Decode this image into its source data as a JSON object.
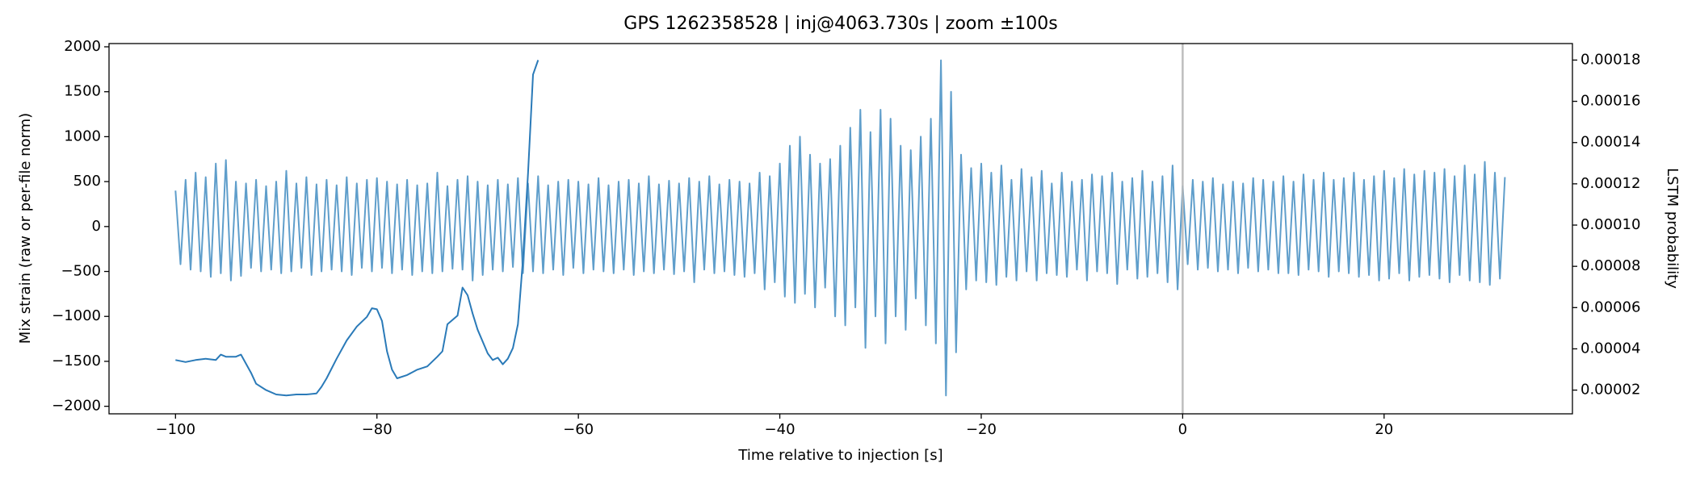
{
  "chart_data": {
    "type": "line",
    "title": "GPS 1262358528 | inj@4063.730s | zoom ±100s",
    "xlabel": "Time relative to injection [s]",
    "ylabel": "Mix strain (raw or per-file norm)",
    "y2label": "LSTM probability",
    "xlim": [
      -106.6,
      38.7
    ],
    "ylim": [
      -2084,
      2036
    ],
    "y2lim": [
      8.5e-06,
      0.000188
    ],
    "xticks": [
      {
        "value": -100,
        "label": "−100"
      },
      {
        "value": -80,
        "label": "−80"
      },
      {
        "value": -60,
        "label": "−60"
      },
      {
        "value": -40,
        "label": "−40"
      },
      {
        "value": -20,
        "label": "−20"
      },
      0,
      20
    ],
    "yticks": [
      {
        "value": -2000,
        "label": "−2000"
      },
      {
        "value": -1500,
        "label": "−1500"
      },
      {
        "value": -1000,
        "label": "−1000"
      },
      {
        "value": -500,
        "label": "−500"
      },
      0,
      500,
      1000,
      1500,
      2000
    ],
    "y2ticks": [
      2e-05,
      4e-05,
      6e-05,
      8e-05,
      {
        "value": 0.0001,
        "label": "0.00010"
      },
      0.00012,
      0.00014,
      0.00016,
      0.00018
    ],
    "vline": {
      "x": 0,
      "color": "#b8b8b8"
    },
    "series": [
      {
        "color": "#5f9ecb",
        "x": [
          -100,
          -99.5,
          -99,
          -98.5,
          -98,
          -97.5,
          -97,
          -96.5,
          -96,
          -95.5,
          -95,
          -94.5,
          -94,
          -93.5,
          -93,
          -92.5,
          -92,
          -91.5,
          -91,
          -90.5,
          -90,
          -89.5,
          -89,
          -88.5,
          -88,
          -87.5,
          -87,
          -86.5,
          -86,
          -85.5,
          -85,
          -84.5,
          -84,
          -83.5,
          -83,
          -82.5,
          -82,
          -81.5,
          -81,
          -80.5,
          -80,
          -79.5,
          -79,
          -78.5,
          -78,
          -77.5,
          -77,
          -76.5,
          -76,
          -75.5,
          -75,
          -74.5,
          -74,
          -73.5,
          -73,
          -72.5,
          -72,
          -71.5,
          -71,
          -70.5,
          -70,
          -69.5,
          -69,
          -68.5,
          -68,
          -67.5,
          -67,
          -66.5,
          -66,
          -65.5,
          -65,
          -64.5,
          -64,
          -63.5,
          -63,
          -62.5,
          -62,
          -61.5,
          -61,
          -60.5,
          -60,
          -59.5,
          -59,
          -58.5,
          -58,
          -57.5,
          -57,
          -56.5,
          -56,
          -55.5,
          -55,
          -54.5,
          -54,
          -53.5,
          -53,
          -52.5,
          -52,
          -51.5,
          -51,
          -50.5,
          -50,
          -49.5,
          -49,
          -48.5,
          -48,
          -47.5,
          -47,
          -46.5,
          -46,
          -45.5,
          -45,
          -44.5,
          -44,
          -43.5,
          -43,
          -42.5,
          -42,
          -41.5,
          -41,
          -40.5,
          -40,
          -39.5,
          -39,
          -38.5,
          -38,
          -37.5,
          -37,
          -36.5,
          -36,
          -35.5,
          -35,
          -34.5,
          -34,
          -33.5,
          -33,
          -32.5,
          -32,
          -31.5,
          -31,
          -30.5,
          -30,
          -29.5,
          -29,
          -28.5,
          -28,
          -27.5,
          -27,
          -26.5,
          -26,
          -25.5,
          -25,
          -24.5,
          -24,
          -23.5,
          -23,
          -22.5,
          -22,
          -21.5,
          -21,
          -20.5,
          -20,
          -19.5,
          -19,
          -18.5,
          -18,
          -17.5,
          -17,
          -16.5,
          -16,
          -15.5,
          -15,
          -14.5,
          -14,
          -13.5,
          -13,
          -12.5,
          -12,
          -11.5,
          -11,
          -10.5,
          -10,
          -9.5,
          -9,
          -8.5,
          -8,
          -7.5,
          -7,
          -6.5,
          -6,
          -5.5,
          -5,
          -4.5,
          -4,
          -3.5,
          -3,
          -2.5,
          -2,
          -1.5,
          -1,
          -0.5,
          0,
          0.5,
          1,
          1.5,
          2,
          2.5,
          3,
          3.5,
          4,
          4.5,
          5,
          5.5,
          6,
          6.5,
          7,
          7.5,
          8,
          8.5,
          9,
          9.5,
          10,
          10.5,
          11,
          11.5,
          12,
          12.5,
          13,
          13.5,
          14,
          14.5,
          15,
          15.5,
          16,
          16.5,
          17,
          17.5,
          18,
          18.5,
          19,
          19.5,
          20,
          20.5,
          21,
          21.5,
          22,
          22.5,
          23,
          23.5,
          24,
          24.5,
          25,
          25.5,
          26,
          26.5,
          27,
          27.5,
          28,
          28.5,
          29,
          29.5,
          30,
          30.5,
          31,
          31.5,
          32
        ],
        "values": [
          400,
          -420,
          520,
          -480,
          600,
          -500,
          550,
          -560,
          700,
          -520,
          740,
          -600,
          500,
          -550,
          480,
          -460,
          520,
          -500,
          450,
          -480,
          500,
          -520,
          620,
          -500,
          480,
          -460,
          550,
          -540,
          470,
          -500,
          520,
          -480,
          460,
          -500,
          550,
          -540,
          480,
          -460,
          520,
          -500,
          540,
          -460,
          500,
          -520,
          470,
          -480,
          520,
          -540,
          460,
          -500,
          480,
          -520,
          600,
          -500,
          450,
          -470,
          520,
          -480,
          560,
          -600,
          500,
          -540,
          460,
          -480,
          520,
          -500,
          470,
          -450,
          540,
          -520,
          480,
          -500,
          560,
          -520,
          460,
          -480,
          500,
          -540,
          520,
          -460,
          500,
          -520,
          470,
          -480,
          540,
          -500,
          460,
          -520,
          500,
          -480,
          520,
          -540,
          480,
          -500,
          560,
          -520,
          470,
          -480,
          510,
          -530,
          480,
          -500,
          540,
          -620,
          500,
          -480,
          560,
          -520,
          470,
          -500,
          520,
          -540,
          500,
          -560,
          480,
          -520,
          600,
          -700,
          560,
          -620,
          700,
          -780,
          900,
          -850,
          1000,
          -750,
          800,
          -900,
          700,
          -680,
          750,
          -1000,
          900,
          -1100,
          1100,
          -900,
          1300,
          -1350,
          1050,
          -1000,
          1300,
          -1300,
          1200,
          -1000,
          900,
          -1150,
          850,
          -800,
          1000,
          -1100,
          1200,
          -1300,
          1850,
          -1880,
          1500,
          -1400,
          800,
          -700,
          650,
          -600,
          700,
          -620,
          600,
          -650,
          680,
          -560,
          520,
          -600,
          640,
          -500,
          550,
          -600,
          620,
          -520,
          480,
          -540,
          600,
          -560,
          500,
          -480,
          520,
          -600,
          580,
          -500,
          560,
          -520,
          600,
          -640,
          500,
          -480,
          540,
          -580,
          620,
          -560,
          500,
          -520,
          560,
          -620,
          680,
          -700,
          450,
          -420,
          520,
          -480,
          500,
          -460,
          540,
          -500,
          470,
          -480,
          500,
          -520,
          480,
          -460,
          540,
          -500,
          520,
          -480,
          500,
          -520,
          560,
          -520,
          500,
          -540,
          580,
          -480,
          520,
          -500,
          600,
          -560,
          520,
          -500,
          540,
          -520,
          600,
          -560,
          520,
          -540,
          560,
          -600,
          620,
          -580,
          540,
          -520,
          640,
          -600,
          580,
          -560,
          620,
          -540,
          600,
          -580,
          640,
          -620,
          560,
          -540,
          680,
          -600,
          580,
          -620,
          720,
          -650,
          600,
          -580,
          550
        ]
      },
      {
        "color": "#2a7ab8",
        "axis": "y2",
        "x": [
          -100,
          -99,
          -98,
          -97,
          -96,
          -95.5,
          -95,
          -94,
          -93.5,
          -92.5,
          -92,
          -91,
          -90,
          -89,
          -88,
          -87,
          -86,
          -85.5,
          -85,
          -84,
          -83,
          -82,
          -81,
          -80.5,
          -80,
          -79.5,
          -79,
          -78.5,
          -78,
          -77,
          -76,
          -75,
          -74,
          -73.5,
          -73,
          -72,
          -71.5,
          -71,
          -70.5,
          -70,
          -69,
          -68.5,
          -68,
          -67.5,
          -67,
          -66.5,
          -66,
          -65.5,
          -65,
          -64.5,
          -64
        ],
        "values": [
          3.46e-05,
          3.36e-05,
          3.46e-05,
          3.52e-05,
          3.46e-05,
          3.72e-05,
          3.62e-05,
          3.62e-05,
          3.72e-05,
          2.84e-05,
          2.31e-05,
          2e-05,
          1.79e-05,
          1.74e-05,
          1.79e-05,
          1.79e-05,
          1.84e-05,
          2.16e-05,
          2.57e-05,
          3.52e-05,
          4.41e-05,
          5.08e-05,
          5.55e-05,
          5.97e-05,
          5.92e-05,
          5.35e-05,
          3.88e-05,
          2.99e-05,
          2.57e-05,
          2.73e-05,
          2.99e-05,
          3.15e-05,
          3.62e-05,
          3.88e-05,
          5.19e-05,
          5.61e-05,
          6.97e-05,
          6.6e-05,
          5.71e-05,
          4.93e-05,
          3.78e-05,
          3.46e-05,
          3.57e-05,
          3.25e-05,
          3.52e-05,
          4.04e-05,
          5.19e-05,
          8.33e-05,
          0.000125,
          0.000173,
          0.00018
        ]
      }
    ]
  }
}
